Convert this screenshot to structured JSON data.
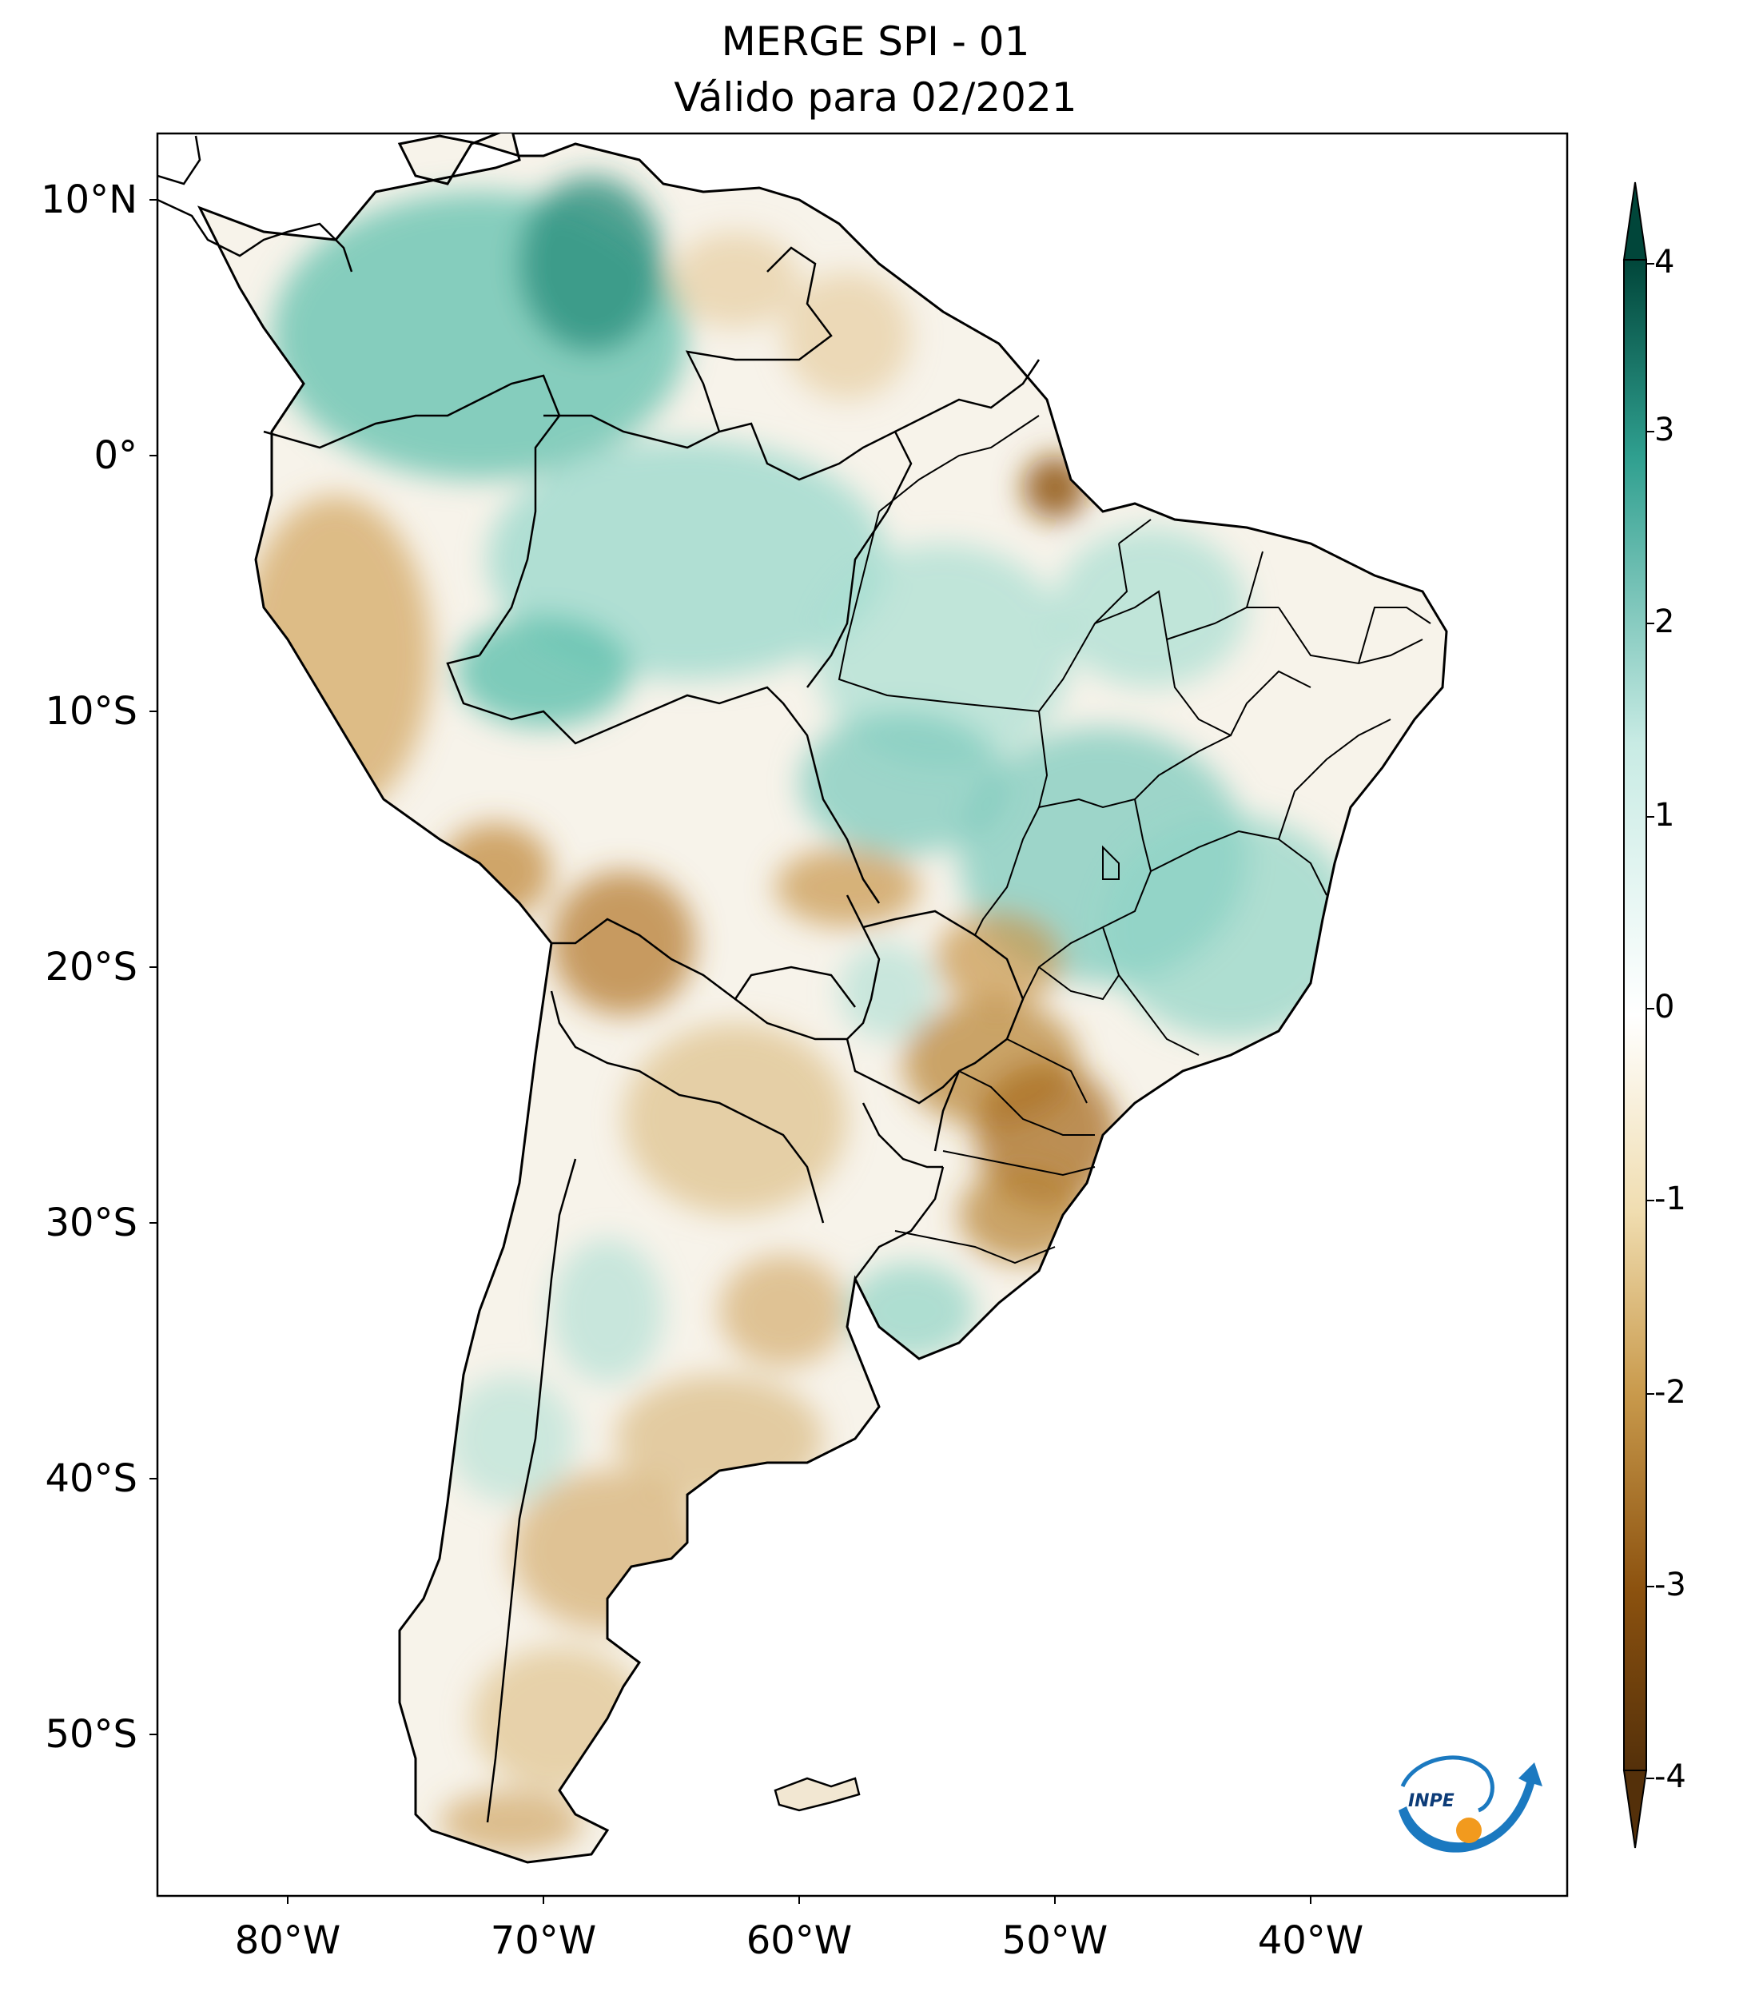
{
  "title": {
    "line1": "MERGE   SPI - 01",
    "line2": "Válido para 02/2021"
  },
  "map": {
    "region": "South America",
    "lat_labels": [
      "10°N",
      "0°",
      "10°S",
      "20°S",
      "30°S",
      "40°S",
      "50°S"
    ],
    "lon_labels": [
      "80°W",
      "70°W",
      "60°W",
      "50°W",
      "40°W"
    ],
    "logo_text": "INPE"
  },
  "colorbar": {
    "ticks": [
      "4",
      "3",
      "2",
      "1",
      "0",
      "-1",
      "-2",
      "-3",
      "-4"
    ],
    "colors": {
      "dark_teal": "#01463a",
      "teal": "#2f9f8f",
      "light_teal": "#c8ebe4",
      "white": "#ffffff",
      "light_tan": "#f0ddb0",
      "tan": "#c99a4c",
      "brown": "#8c520f",
      "dark_brown": "#54300a"
    }
  },
  "colors": {
    "land_green": "#9fdcd0",
    "land_tan": "#e6c893",
    "land_brown": "#b27a30",
    "ocean": "#ffffff",
    "border": "#000000",
    "logo_blue": "#1b79c0",
    "logo_orange": "#f29a1e"
  }
}
